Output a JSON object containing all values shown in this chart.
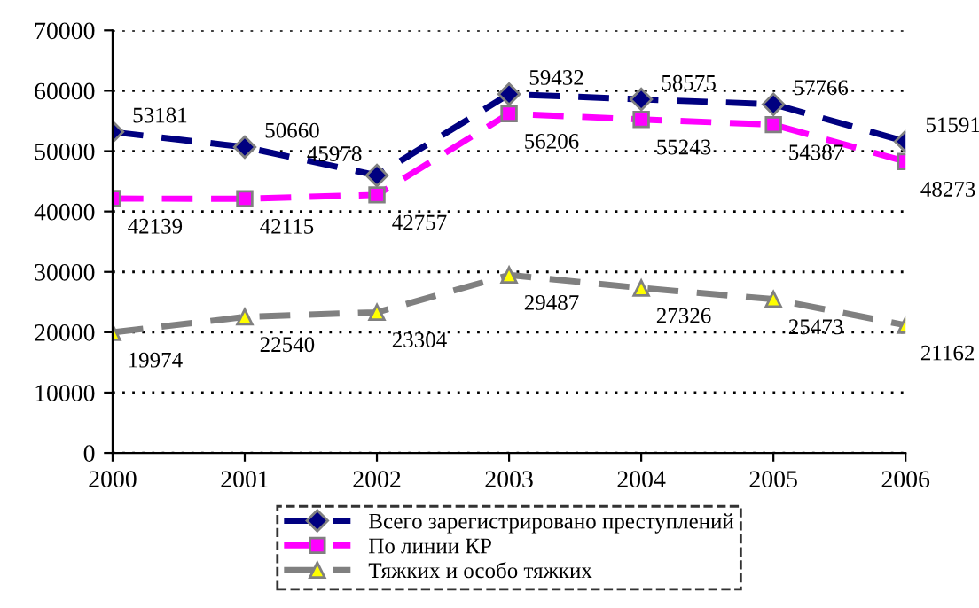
{
  "chart_data": {
    "type": "line",
    "categories": [
      "2000",
      "2001",
      "2002",
      "2003",
      "2004",
      "2005",
      "2006"
    ],
    "series": [
      {
        "name": "Всего зарегистрировано преступлений",
        "color": "#000080",
        "marker": "diamond",
        "line_style": "dashed",
        "values": [
          53181,
          50660,
          45978,
          59432,
          58575,
          57766,
          51591
        ]
      },
      {
        "name": "По линии КР",
        "color": "#ff00ff",
        "marker": "square",
        "line_style": "dashed",
        "values": [
          42139,
          42115,
          42757,
          56206,
          55243,
          54387,
          48273
        ]
      },
      {
        "name": "Тяжких и особо тяжких",
        "color": "#808080",
        "marker": "triangle",
        "line_style": "dashed",
        "values": [
          19974,
          22540,
          23304,
          29487,
          27326,
          25473,
          21162
        ]
      }
    ],
    "ylim": [
      0,
      70000
    ],
    "yticks": [
      0,
      10000,
      20000,
      30000,
      40000,
      50000,
      60000,
      70000
    ],
    "grid": "y",
    "legend": "bottom",
    "data_labels": true
  }
}
